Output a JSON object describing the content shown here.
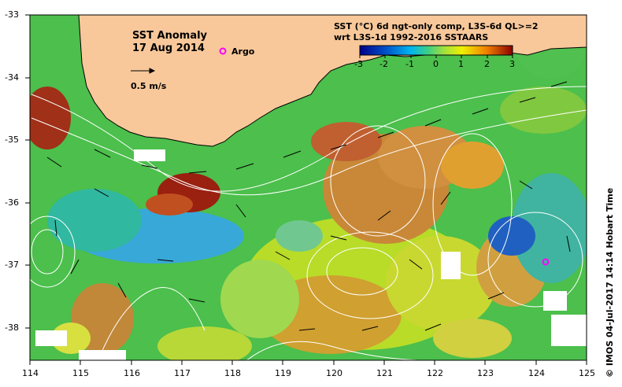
{
  "title": {
    "line1": "SST Anomaly",
    "line2": "17 Aug 2014"
  },
  "argo_label": "Argo",
  "velocity_scale_label": "0.5 m/s",
  "header": {
    "line1": "SST (°C) 6d ngt-only comp, L3S-6d QL>=2",
    "line2": "wrt L3S-1d 1992-2016 SSTAARS"
  },
  "colorbar": {
    "ticks": [
      "-3",
      "-2",
      "-1",
      "0",
      "1",
      "2",
      "3"
    ]
  },
  "credit": "© IMOS 04-Jul-2017 14:14 Hobart Time",
  "axes": {
    "x_ticks": [
      "114",
      "115",
      "116",
      "117",
      "118",
      "119",
      "120",
      "121",
      "122",
      "123",
      "124",
      "125"
    ],
    "y_ticks": [
      "-33",
      "-34",
      "-35",
      "-36",
      "-37",
      "-38"
    ]
  },
  "colors": {
    "land": "#f8c89a",
    "no_data": "#ffffff",
    "frame": "#000000",
    "contour": "#ffffff",
    "argo": "#ff00ff"
  }
}
